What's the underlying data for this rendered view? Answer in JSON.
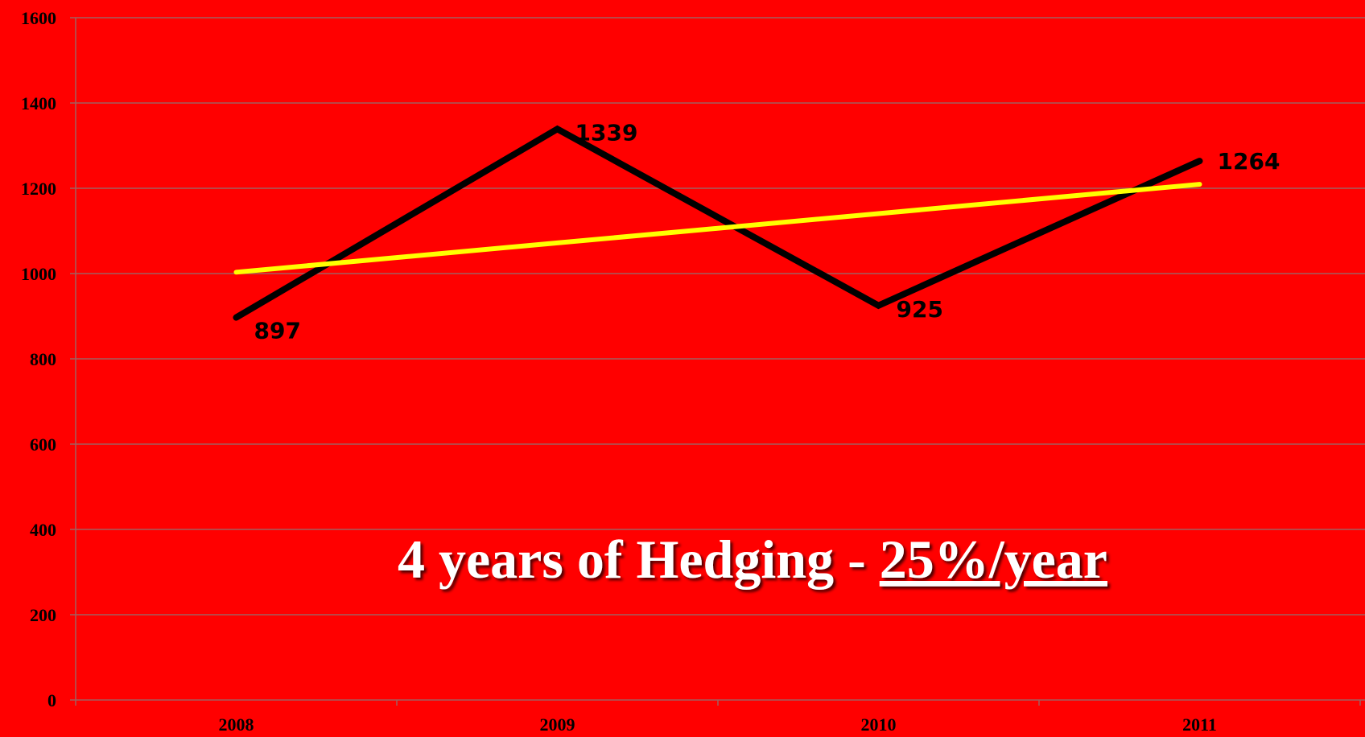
{
  "chart_data": {
    "type": "line",
    "categories": [
      "2008",
      "2009",
      "2010",
      "2011"
    ],
    "series": [
      {
        "color": "#000000",
        "values": [
          897,
          1339,
          925,
          1264
        ],
        "data_labels": true
      },
      {
        "color": "#ffff00",
        "values": [
          1003.2,
          1071.9,
          1140.6,
          1209.3
        ],
        "data_labels": false
      }
    ],
    "ylim": [
      0,
      1600
    ],
    "yticks": [
      0,
      200,
      400,
      600,
      800,
      1000,
      1200,
      1400,
      1600
    ],
    "grid": true,
    "background": "#ff0000",
    "annotation": {
      "text": "4 years of Hedging - ",
      "emphasis": "25%/year"
    }
  }
}
